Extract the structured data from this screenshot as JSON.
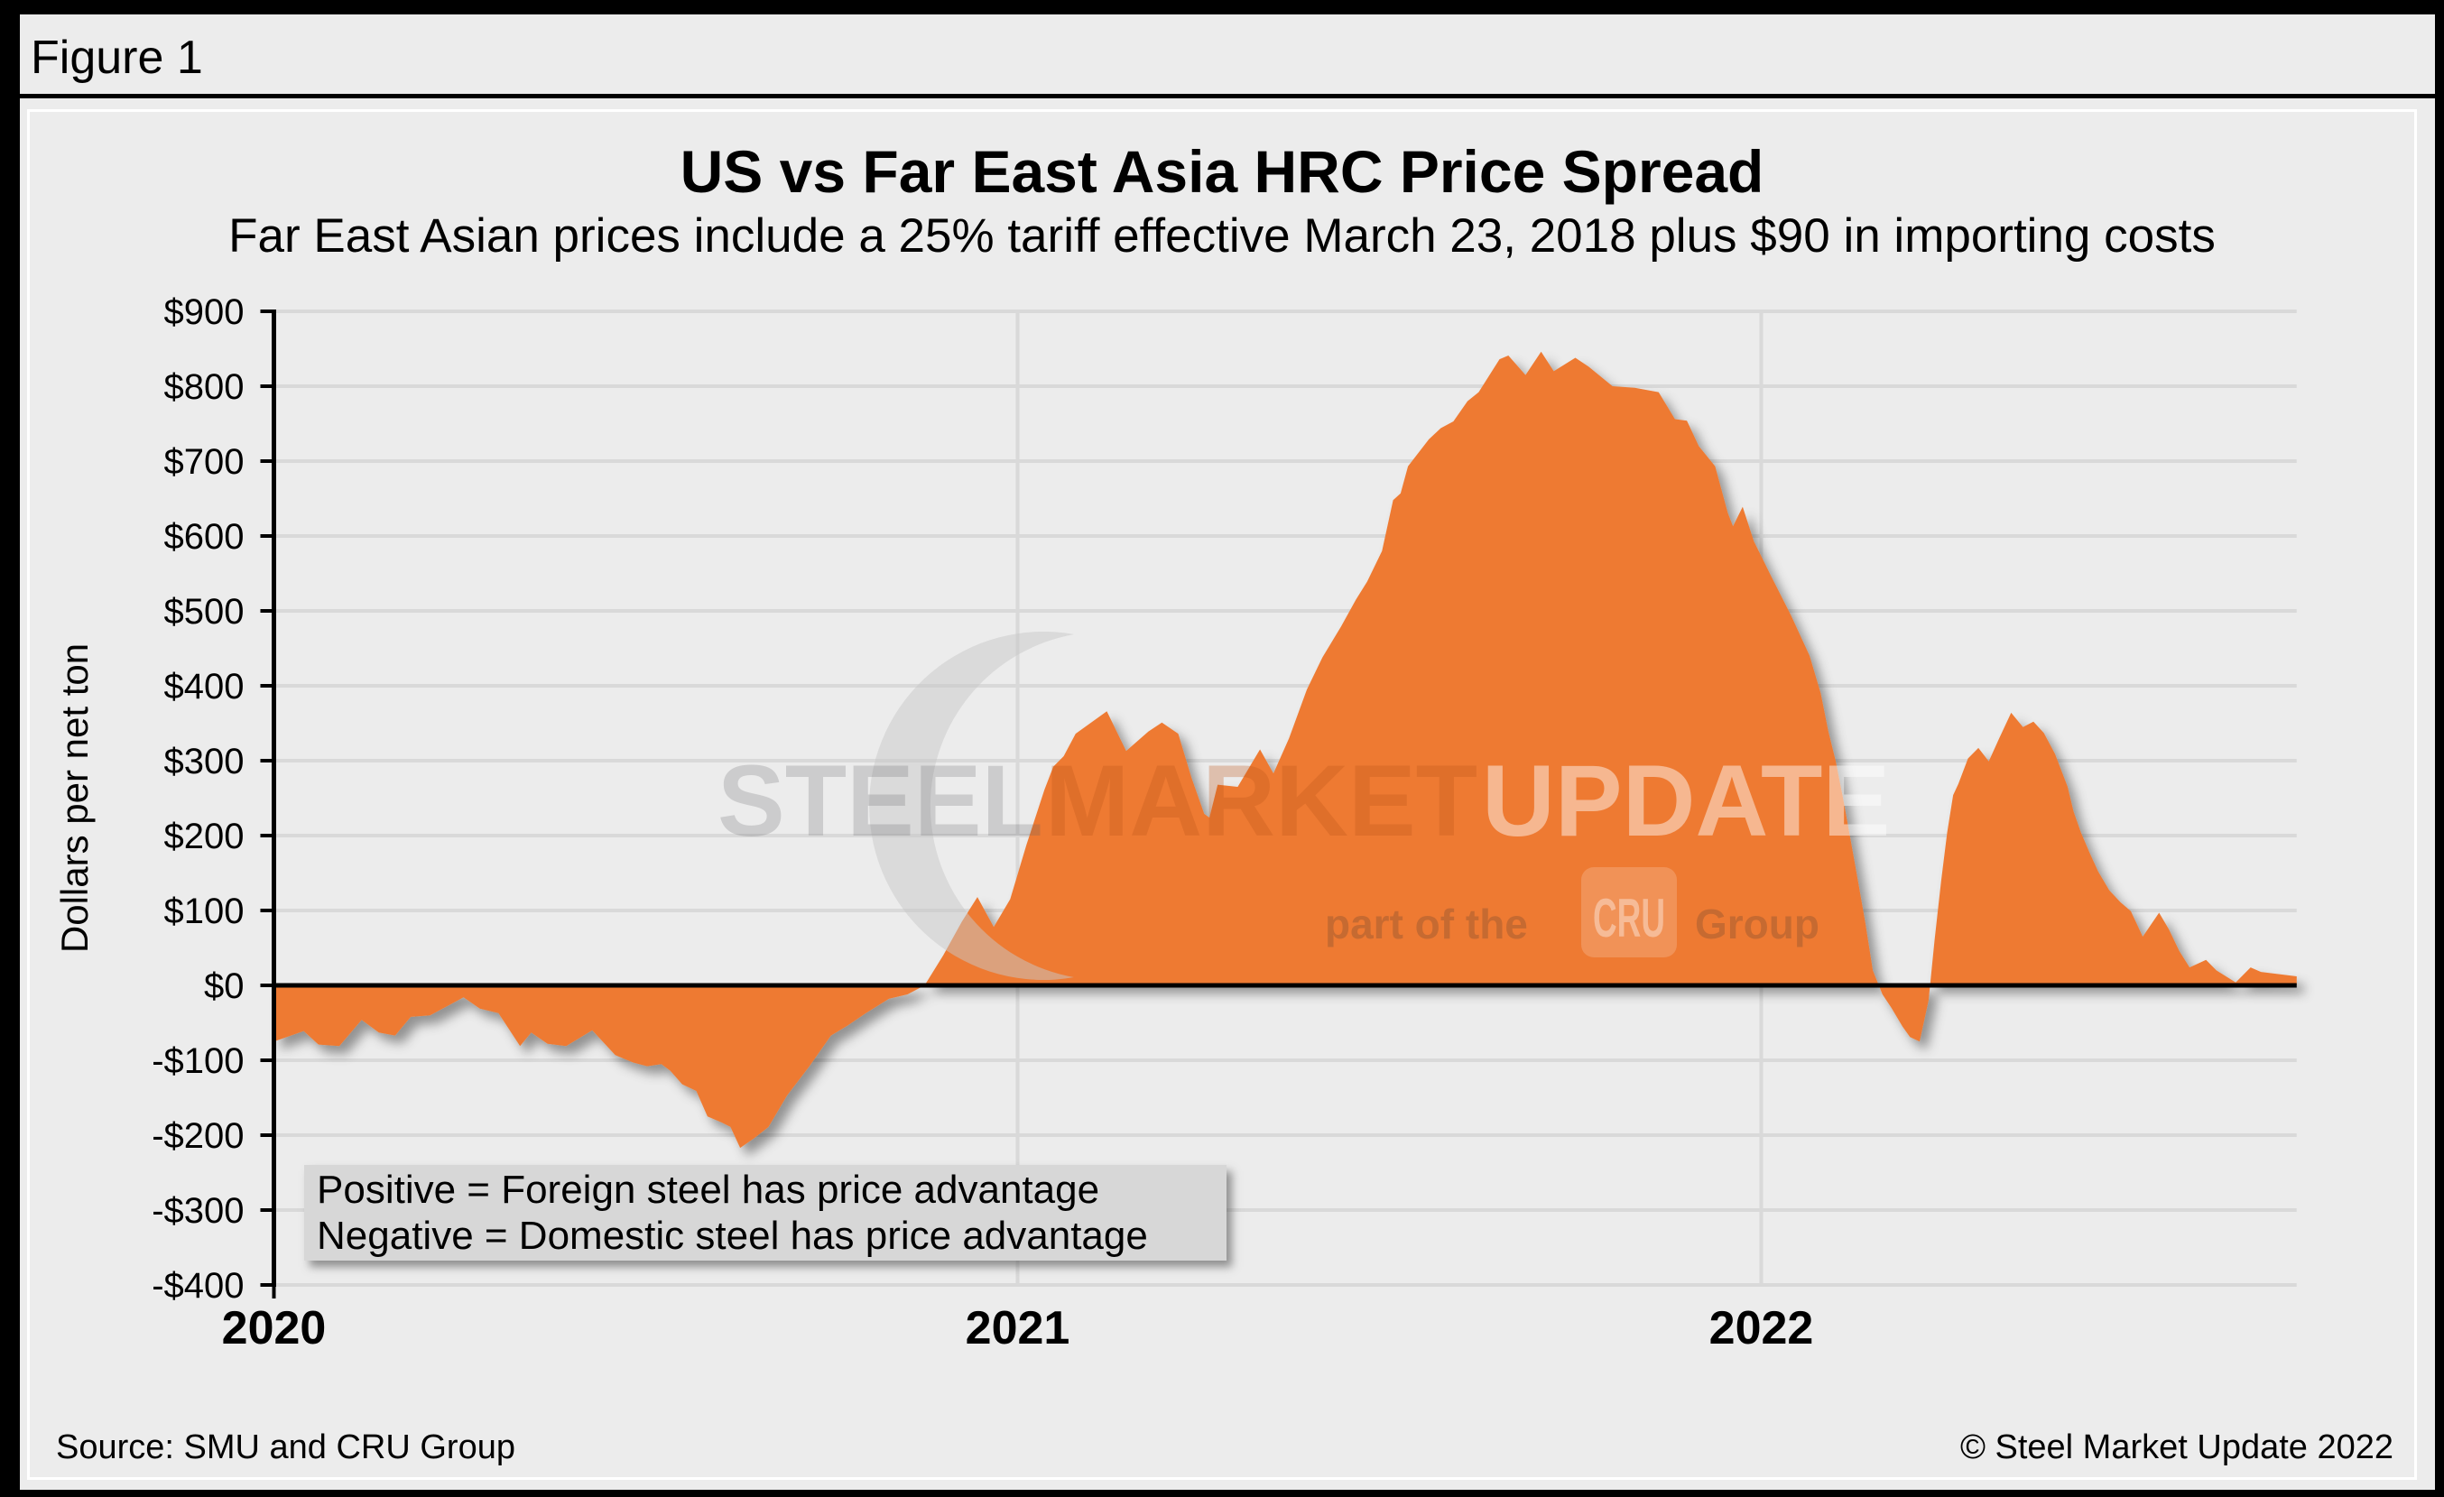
{
  "figure_label": "Figure 1",
  "footer": {
    "source": "Source: SMU and CRU Group",
    "copyright": "© Steel Market Update 2022"
  },
  "watermark": {
    "word1": "STEEL",
    "word2": "MARKET",
    "word3": "UPDATE",
    "tagline_prefix": "part of the",
    "cru_badge": "CRU",
    "tagline_suffix": "Group"
  },
  "chart_data": {
    "type": "area",
    "title": "US vs Far East Asia HRC Price Spread",
    "subtitle": "Far East Asian prices include a 25% tariff effective March 23, 2018 plus $90 in importing costs",
    "ylabel": "Dollars per net ton",
    "ylim": [
      -400,
      900
    ],
    "ytick_step": 100,
    "ytick_labels": [
      "$900",
      "$800",
      "$700",
      "$600",
      "$500",
      "$400",
      "$300",
      "$200",
      "$100",
      "$0",
      "-$100",
      "-$200",
      "-$300",
      "-$400"
    ],
    "xlim": [
      2020.0,
      2022.72
    ],
    "xticks": [
      2020,
      2021,
      2022
    ],
    "xtick_labels": [
      "2020",
      "2021",
      "2022"
    ],
    "grid": true,
    "annotation": {
      "line1": "Positive = Foreign steel has price advantage",
      "line2": "Negative = Domestic steel has price advantage"
    },
    "colors": {
      "area": "#ee7a30",
      "grid": "#d9d9d9",
      "zero_line": "#000000",
      "axis": "#000000",
      "background": "#ececec",
      "annotation_bg": "#d7d7d7"
    },
    "series": [
      {
        "name": "US minus Far East Asia HRC price spread",
        "unit": "dollars per net ton",
        "points": [
          [
            2020.0,
            -75
          ],
          [
            2020.04,
            -61
          ],
          [
            2020.06,
            -79
          ],
          [
            2020.088,
            -81
          ],
          [
            2020.118,
            -46
          ],
          [
            2020.141,
            -63
          ],
          [
            2020.163,
            -67
          ],
          [
            2020.184,
            -42
          ],
          [
            2020.21,
            -40
          ],
          [
            2020.255,
            -16
          ],
          [
            2020.277,
            -31
          ],
          [
            2020.302,
            -37
          ],
          [
            2020.331,
            -81
          ],
          [
            2020.346,
            -63
          ],
          [
            2020.368,
            -78
          ],
          [
            2020.393,
            -81
          ],
          [
            2020.428,
            -60
          ],
          [
            2020.459,
            -93
          ],
          [
            2020.483,
            -103
          ],
          [
            2020.502,
            -108
          ],
          [
            2020.521,
            -105
          ],
          [
            2020.533,
            -114
          ],
          [
            2020.549,
            -132
          ],
          [
            2020.568,
            -141
          ],
          [
            2020.583,
            -175
          ],
          [
            2020.602,
            -183
          ],
          [
            2020.614,
            -189
          ],
          [
            2020.627,
            -217
          ],
          [
            2020.646,
            -204
          ],
          [
            2020.665,
            -189
          ],
          [
            2020.69,
            -147
          ],
          [
            2020.72,
            -108
          ],
          [
            2020.749,
            -67
          ],
          [
            2020.771,
            -54
          ],
          [
            2020.796,
            -37
          ],
          [
            2020.827,
            -18
          ],
          [
            2020.852,
            -12
          ],
          [
            2020.875,
            0
          ],
          [
            2020.9,
            40
          ],
          [
            2020.925,
            85
          ],
          [
            2020.946,
            118
          ],
          [
            2020.968,
            78
          ],
          [
            2020.99,
            115
          ],
          [
            2021.012,
            188
          ],
          [
            2021.036,
            261
          ],
          [
            2021.048,
            292
          ],
          [
            2021.062,
            306
          ],
          [
            2021.078,
            336
          ],
          [
            2021.12,
            366
          ],
          [
            2021.146,
            313
          ],
          [
            2021.176,
            339
          ],
          [
            2021.194,
            351
          ],
          [
            2021.216,
            336
          ],
          [
            2021.234,
            277
          ],
          [
            2021.251,
            229
          ],
          [
            2021.258,
            224
          ],
          [
            2021.269,
            268
          ],
          [
            2021.296,
            265
          ],
          [
            2021.326,
            315
          ],
          [
            2021.344,
            283
          ],
          [
            2021.365,
            330
          ],
          [
            2021.389,
            395
          ],
          [
            2021.41,
            438
          ],
          [
            2021.435,
            479
          ],
          [
            2021.455,
            515
          ],
          [
            2021.47,
            539
          ],
          [
            2021.49,
            580
          ],
          [
            2021.505,
            648
          ],
          [
            2021.515,
            657
          ],
          [
            2021.525,
            693
          ],
          [
            2021.553,
            729
          ],
          [
            2021.569,
            744
          ],
          [
            2021.586,
            753
          ],
          [
            2021.605,
            780
          ],
          [
            2021.62,
            792
          ],
          [
            2021.648,
            836
          ],
          [
            2021.66,
            841
          ],
          [
            2021.683,
            815
          ],
          [
            2021.704,
            846
          ],
          [
            2021.721,
            820
          ],
          [
            2021.75,
            838
          ],
          [
            2021.768,
            826
          ],
          [
            2021.8,
            800
          ],
          [
            2021.83,
            798
          ],
          [
            2021.862,
            792
          ],
          [
            2021.884,
            756
          ],
          [
            2021.9,
            754
          ],
          [
            2021.916,
            720
          ],
          [
            2021.938,
            693
          ],
          [
            2021.955,
            631
          ],
          [
            2021.962,
            613
          ],
          [
            2021.975,
            639
          ],
          [
            2021.99,
            593
          ],
          [
            2022.013,
            547
          ],
          [
            2022.04,
            494
          ],
          [
            2022.065,
            440
          ],
          [
            2022.08,
            390
          ],
          [
            2022.09,
            340
          ],
          [
            2022.1,
            300
          ],
          [
            2022.11,
            250
          ],
          [
            2022.12,
            195
          ],
          [
            2022.13,
            140
          ],
          [
            2022.14,
            83
          ],
          [
            2022.15,
            20
          ],
          [
            2022.163,
            -12
          ],
          [
            2022.175,
            -30
          ],
          [
            2022.19,
            -55
          ],
          [
            2022.2,
            -69
          ],
          [
            2022.213,
            -75
          ],
          [
            2022.225,
            -20
          ],
          [
            2022.233,
            60
          ],
          [
            2022.242,
            140
          ],
          [
            2022.25,
            204
          ],
          [
            2022.258,
            254
          ],
          [
            2022.265,
            269
          ],
          [
            2022.278,
            303
          ],
          [
            2022.292,
            317
          ],
          [
            2022.306,
            299
          ],
          [
            2022.32,
            330
          ],
          [
            2022.336,
            364
          ],
          [
            2022.352,
            345
          ],
          [
            2022.366,
            352
          ],
          [
            2022.38,
            337
          ],
          [
            2022.395,
            309
          ],
          [
            2022.412,
            265
          ],
          [
            2022.42,
            232
          ],
          [
            2022.43,
            204
          ],
          [
            2022.442,
            176
          ],
          [
            2022.453,
            152
          ],
          [
            2022.468,
            127
          ],
          [
            2022.483,
            111
          ],
          [
            2022.497,
            99
          ],
          [
            2022.513,
            65
          ],
          [
            2022.535,
            97
          ],
          [
            2022.548,
            75
          ],
          [
            2022.562,
            46
          ],
          [
            2022.576,
            24
          ],
          [
            2022.598,
            34
          ],
          [
            2022.612,
            20
          ],
          [
            2022.638,
            4
          ],
          [
            2022.658,
            24
          ],
          [
            2022.672,
            18
          ],
          [
            2022.72,
            12
          ]
        ]
      }
    ]
  }
}
